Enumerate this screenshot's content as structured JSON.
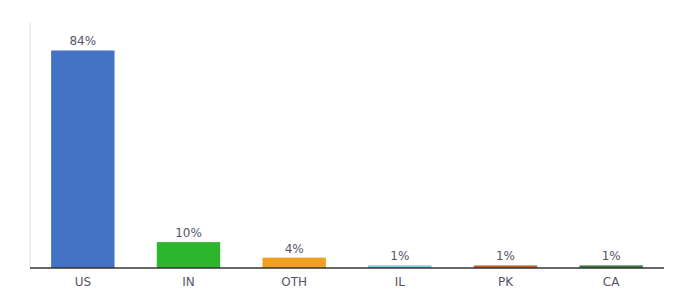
{
  "chart_data": {
    "type": "bar",
    "categories": [
      "US",
      "IN",
      "OTH",
      "IL",
      "PK",
      "CA"
    ],
    "values": [
      84,
      10,
      4,
      1,
      1,
      1
    ],
    "value_labels": [
      "84%",
      "10%",
      "4%",
      "1%",
      "1%",
      "1%"
    ],
    "colors": [
      "#4472c4",
      "#2db52d",
      "#f0a020",
      "#7ec8e3",
      "#c0622a",
      "#3a7a3a"
    ],
    "ylim": [
      0,
      95
    ],
    "data_labels": true,
    "tick_labels": "x",
    "grid": false
  }
}
